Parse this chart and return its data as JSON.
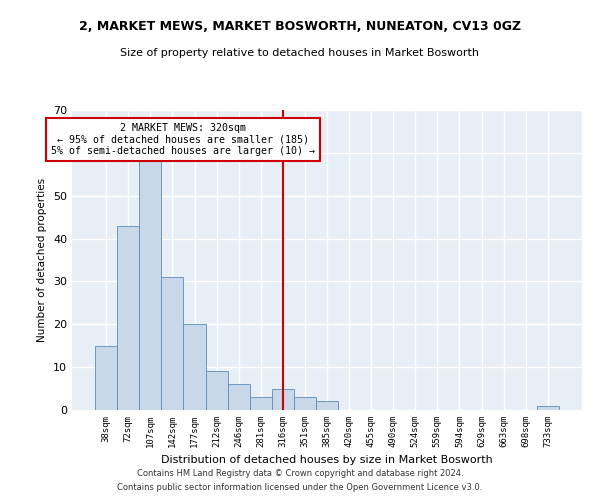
{
  "title1": "2, MARKET MEWS, MARKET BOSWORTH, NUNEATON, CV13 0GZ",
  "title2": "Size of property relative to detached houses in Market Bosworth",
  "xlabel": "Distribution of detached houses by size in Market Bosworth",
  "ylabel": "Number of detached properties",
  "bar_labels": [
    "38sqm",
    "72sqm",
    "107sqm",
    "142sqm",
    "177sqm",
    "212sqm",
    "246sqm",
    "281sqm",
    "316sqm",
    "351sqm",
    "385sqm",
    "420sqm",
    "455sqm",
    "490sqm",
    "524sqm",
    "559sqm",
    "594sqm",
    "629sqm",
    "663sqm",
    "698sqm",
    "733sqm"
  ],
  "bar_values": [
    15,
    43,
    58,
    31,
    20,
    9,
    6,
    3,
    5,
    3,
    2,
    0,
    0,
    0,
    0,
    0,
    0,
    0,
    0,
    0,
    1
  ],
  "bar_color": "#c8d8e8",
  "bar_edge_color": "#5b8db8",
  "bg_color": "#e8eef5",
  "grid_color": "#ffffff",
  "vline_x_index": 8,
  "vline_color": "#cc0000",
  "annotation_text": "2 MARKET MEWS: 320sqm\n← 95% of detached houses are smaller (185)\n5% of semi-detached houses are larger (10) →",
  "annotation_box_color": "#cc0000",
  "ylim": [
    0,
    70
  ],
  "yticks": [
    0,
    10,
    20,
    30,
    40,
    50,
    60,
    70
  ],
  "footer1": "Contains HM Land Registry data © Crown copyright and database right 2024.",
  "footer2": "Contains public sector information licensed under the Open Government Licence v3.0."
}
